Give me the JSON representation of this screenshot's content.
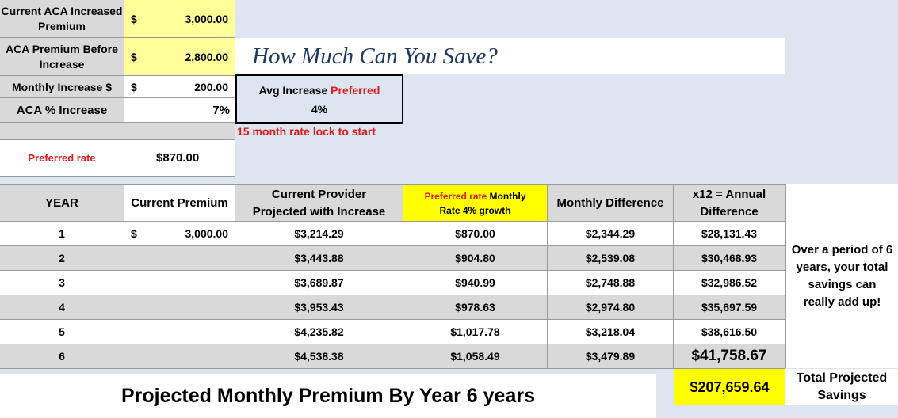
{
  "top": {
    "current_aca_label": "Current ACA Increased Premium",
    "current_aca_dollar": "$",
    "current_aca_value": "3,000.00",
    "before_label": "ACA Premium Before Increase",
    "before_dollar": "$",
    "before_value": "2,800.00",
    "monthly_inc_label": "Monthly Increase $",
    "monthly_inc_dollar": "$",
    "monthly_inc_value": "200.00",
    "pct_label": "ACA % Increase",
    "pct_value": "7%",
    "preferred_label": "Preferred rate",
    "preferred_value": "$870.00"
  },
  "banner": {
    "title": "How Much Can You Save?"
  },
  "avg": {
    "label_plain": "Avg Increase ",
    "label_red": "Preferred",
    "value": "4%",
    "rate_lock": "15 month rate lock to start"
  },
  "table": {
    "headers": {
      "year": "YEAR",
      "current": "Current Premium",
      "provider_line1": "Current Provider",
      "provider_line2": "Projected with Increase",
      "preferred_red": "Preferred rate",
      "preferred_black": "  Monthly",
      "preferred_line2": "Rate 4% growth",
      "monthly_diff": "Monthly Difference",
      "annual_line1": "x12 = Annual",
      "annual_line2": "Difference"
    },
    "rows": [
      {
        "year": "1",
        "dollar": "$",
        "current": "3,000.00",
        "provider": "$3,214.29",
        "preferred": "$870.00",
        "monthly": "$2,344.29",
        "annual": "$28,131.43"
      },
      {
        "year": "2",
        "dollar": "",
        "current": "",
        "provider": "$3,443.88",
        "preferred": "$904.80",
        "monthly": "$2,539.08",
        "annual": "$30,468.93"
      },
      {
        "year": "3",
        "dollar": "",
        "current": "",
        "provider": "$3,689.87",
        "preferred": "$940.99",
        "monthly": "$2,748.88",
        "annual": "$32,986.52"
      },
      {
        "year": "4",
        "dollar": "",
        "current": "",
        "provider": "$3,953.43",
        "preferred": "$978.63",
        "monthly": "$2,974.80",
        "annual": "$35,697.59"
      },
      {
        "year": "5",
        "dollar": "",
        "current": "",
        "provider": "$4,235.82",
        "preferred": "$1,017.78",
        "monthly": "$3,218.04",
        "annual": "$38,616.50"
      },
      {
        "year": "6",
        "dollar": "",
        "current": "",
        "provider": "$4,538.38",
        "preferred": "$1,058.49",
        "monthly": "$3,479.89",
        "annual": "$41,758.67"
      }
    ],
    "note": "Over a period of 6 years, your total savings can really add up!"
  },
  "footer": {
    "title": "Projected Monthly Premium By Year 6 years",
    "total_value": "$207,659.64",
    "total_label": "Total Projected Savings"
  }
}
